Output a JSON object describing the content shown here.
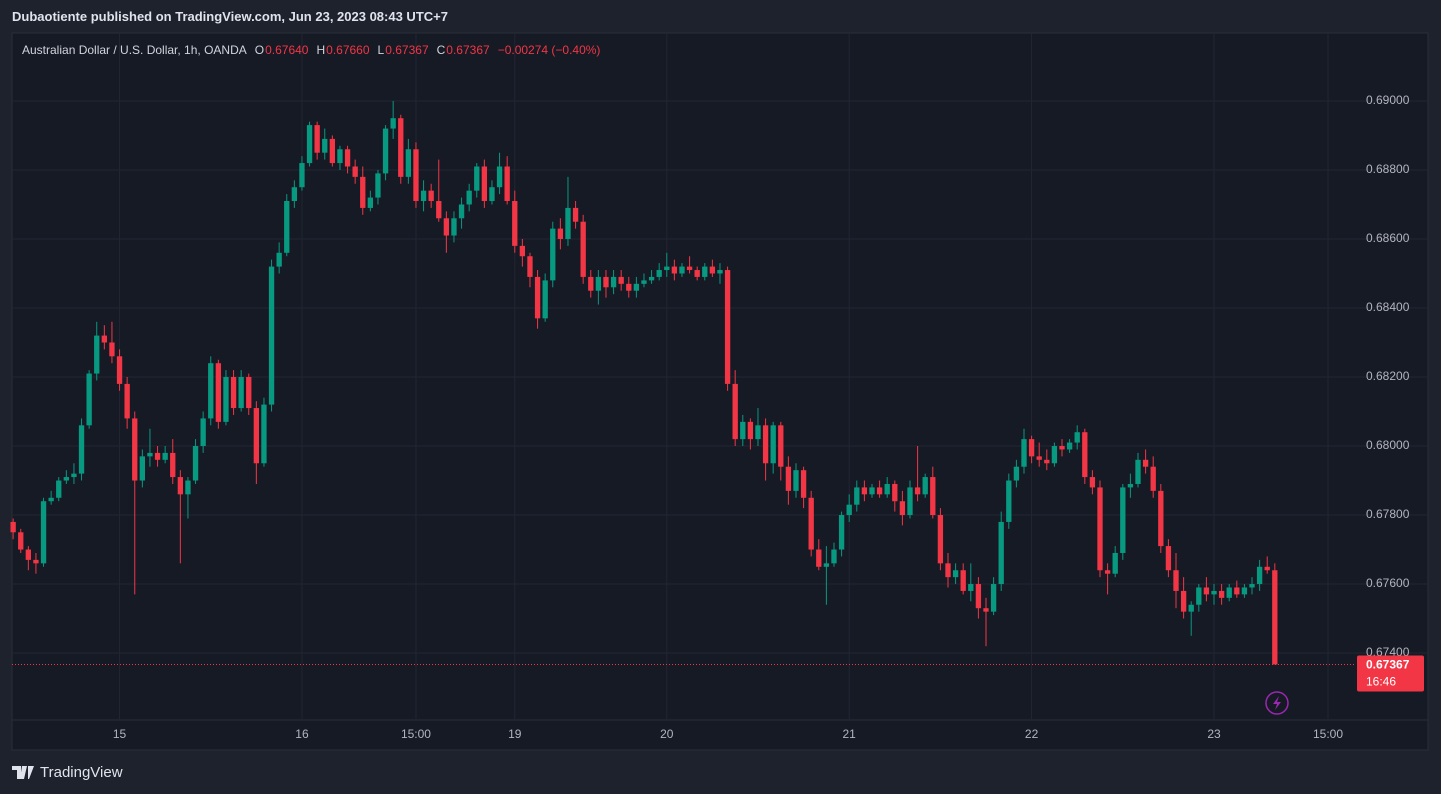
{
  "header": {
    "publisher": "Dubaotiente published on TradingView.com, Jun 23, 2023 08:43 UTC+7"
  },
  "chart_data": {
    "type": "candlestick",
    "symbol": "Australian Dollar / U.S. Dollar, 1h, OANDA",
    "legend_values": [
      {
        "key": "O",
        "value": "0.67640"
      },
      {
        "key": "H",
        "value": "0.67660"
      },
      {
        "key": "L",
        "value": "0.67367"
      },
      {
        "key": "C",
        "value": "0.67367"
      }
    ],
    "change": "−0.00274 (−0.40%)",
    "up_color": "#089981",
    "down_color": "#f23645",
    "grid": true,
    "xlim": [
      -0.15,
      176.55
    ],
    "xticks": [
      {
        "value": 14,
        "label": "15"
      },
      {
        "value": 38,
        "label": "16"
      },
      {
        "value": 53,
        "label": "15:00"
      },
      {
        "value": 66,
        "label": "19"
      },
      {
        "value": 86,
        "label": "20"
      },
      {
        "value": 110,
        "label": "21"
      },
      {
        "value": 134,
        "label": "22"
      },
      {
        "value": 158,
        "label": "23"
      },
      {
        "value": 173,
        "label": "15:00"
      }
    ],
    "ylim": [
      0.67206,
      0.69194
    ],
    "yticks": [
      {
        "value": 0.674,
        "label": "0.67400"
      },
      {
        "value": 0.676,
        "label": "0.67600"
      },
      {
        "value": 0.678,
        "label": "0.67800"
      },
      {
        "value": 0.68,
        "label": "0.68000"
      },
      {
        "value": 0.682,
        "label": "0.68200"
      },
      {
        "value": 0.684,
        "label": "0.68400"
      },
      {
        "value": 0.686,
        "label": "0.68600"
      },
      {
        "value": 0.688,
        "label": "0.68800"
      },
      {
        "value": 0.69,
        "label": "0.69000"
      }
    ],
    "last_price": {
      "value": 0.67367,
      "label": "0.67367"
    },
    "countdown": "16:46",
    "candles": [
      [
        0.6778,
        0.6779,
        0.6773,
        0.6775
      ],
      [
        0.6775,
        0.6776,
        0.6769,
        0.677
      ],
      [
        0.677,
        0.6771,
        0.6764,
        0.6767
      ],
      [
        0.6767,
        0.6769,
        0.6763,
        0.6766
      ],
      [
        0.6766,
        0.6785,
        0.6765,
        0.6784
      ],
      [
        0.6784,
        0.6787,
        0.6783,
        0.6785
      ],
      [
        0.6785,
        0.6791,
        0.6784,
        0.679
      ],
      [
        0.679,
        0.6793,
        0.6789,
        0.6791
      ],
      [
        0.6791,
        0.6795,
        0.6789,
        0.6792
      ],
      [
        0.6792,
        0.6808,
        0.679,
        0.6806
      ],
      [
        0.6806,
        0.6822,
        0.6805,
        0.6821
      ],
      [
        0.6821,
        0.6836,
        0.6819,
        0.6832
      ],
      [
        0.6832,
        0.6835,
        0.6828,
        0.683
      ],
      [
        0.683,
        0.6836,
        0.6824,
        0.6826
      ],
      [
        0.6826,
        0.6828,
        0.6816,
        0.6818
      ],
      [
        0.6818,
        0.682,
        0.6805,
        0.6808
      ],
      [
        0.6808,
        0.681,
        0.6757,
        0.679
      ],
      [
        0.679,
        0.6799,
        0.6788,
        0.6797
      ],
      [
        0.6797,
        0.6805,
        0.6794,
        0.6798
      ],
      [
        0.6798,
        0.68,
        0.6794,
        0.6796
      ],
      [
        0.6796,
        0.68,
        0.6795,
        0.6798
      ],
      [
        0.6798,
        0.6802,
        0.6789,
        0.6791
      ],
      [
        0.6791,
        0.6793,
        0.6766,
        0.6786
      ],
      [
        0.6786,
        0.6791,
        0.6779,
        0.679
      ],
      [
        0.679,
        0.6802,
        0.6789,
        0.68
      ],
      [
        0.68,
        0.681,
        0.6798,
        0.6808
      ],
      [
        0.6808,
        0.6826,
        0.6806,
        0.6824
      ],
      [
        0.6824,
        0.6825,
        0.6805,
        0.6807
      ],
      [
        0.6807,
        0.6822,
        0.6806,
        0.682
      ],
      [
        0.682,
        0.6822,
        0.6809,
        0.6811
      ],
      [
        0.6811,
        0.6822,
        0.681,
        0.682
      ],
      [
        0.682,
        0.6821,
        0.6809,
        0.6811
      ],
      [
        0.6811,
        0.6813,
        0.6789,
        0.6795
      ],
      [
        0.6795,
        0.6814,
        0.6794,
        0.6812
      ],
      [
        0.6812,
        0.6854,
        0.681,
        0.6852
      ],
      [
        0.6852,
        0.6859,
        0.685,
        0.6856
      ],
      [
        0.6856,
        0.6873,
        0.6855,
        0.6871
      ],
      [
        0.6871,
        0.6877,
        0.6869,
        0.6875
      ],
      [
        0.6875,
        0.6884,
        0.6874,
        0.6882
      ],
      [
        0.6882,
        0.6894,
        0.6881,
        0.6893
      ],
      [
        0.6893,
        0.6894,
        0.6883,
        0.6885
      ],
      [
        0.6885,
        0.6892,
        0.6883,
        0.6889
      ],
      [
        0.6889,
        0.689,
        0.6881,
        0.6882
      ],
      [
        0.6882,
        0.6887,
        0.688,
        0.6886
      ],
      [
        0.6886,
        0.6887,
        0.6879,
        0.6881
      ],
      [
        0.6881,
        0.6883,
        0.6876,
        0.6878
      ],
      [
        0.6878,
        0.6881,
        0.6867,
        0.6869
      ],
      [
        0.6869,
        0.6874,
        0.6868,
        0.6872
      ],
      [
        0.6872,
        0.688,
        0.687,
        0.6879
      ],
      [
        0.6879,
        0.6893,
        0.6877,
        0.6892
      ],
      [
        0.6892,
        0.69,
        0.6889,
        0.6895
      ],
      [
        0.6895,
        0.6896,
        0.6876,
        0.6878
      ],
      [
        0.6878,
        0.6889,
        0.6876,
        0.6886
      ],
      [
        0.6886,
        0.6888,
        0.6869,
        0.6871
      ],
      [
        0.6871,
        0.6877,
        0.6868,
        0.6874
      ],
      [
        0.6874,
        0.6876,
        0.6869,
        0.6871
      ],
      [
        0.6871,
        0.6883,
        0.6865,
        0.6866
      ],
      [
        0.6866,
        0.6868,
        0.6856,
        0.6861
      ],
      [
        0.6861,
        0.6868,
        0.6859,
        0.6866
      ],
      [
        0.6866,
        0.6872,
        0.6863,
        0.687
      ],
      [
        0.687,
        0.6876,
        0.6868,
        0.6874
      ],
      [
        0.6874,
        0.6882,
        0.6872,
        0.6881
      ],
      [
        0.6881,
        0.6883,
        0.6869,
        0.6871
      ],
      [
        0.6871,
        0.6877,
        0.687,
        0.6875
      ],
      [
        0.6875,
        0.6885,
        0.6873,
        0.6881
      ],
      [
        0.6881,
        0.6884,
        0.687,
        0.6871
      ],
      [
        0.6871,
        0.6874,
        0.6856,
        0.6858
      ],
      [
        0.6858,
        0.686,
        0.6852,
        0.6855
      ],
      [
        0.6855,
        0.6856,
        0.6846,
        0.6849
      ],
      [
        0.6849,
        0.6851,
        0.6834,
        0.6837
      ],
      [
        0.6837,
        0.685,
        0.6836,
        0.6848
      ],
      [
        0.6848,
        0.6865,
        0.6846,
        0.6863
      ],
      [
        0.6863,
        0.6866,
        0.6857,
        0.686
      ],
      [
        0.686,
        0.6878,
        0.6858,
        0.6869
      ],
      [
        0.6869,
        0.6871,
        0.6863,
        0.6865
      ],
      [
        0.6865,
        0.6867,
        0.6847,
        0.6849
      ],
      [
        0.6849,
        0.6851,
        0.6843,
        0.6845
      ],
      [
        0.6845,
        0.6851,
        0.6841,
        0.6849
      ],
      [
        0.6849,
        0.6851,
        0.6843,
        0.6846
      ],
      [
        0.6846,
        0.6851,
        0.6844,
        0.6849
      ],
      [
        0.6849,
        0.6851,
        0.6845,
        0.6847
      ],
      [
        0.6847,
        0.6849,
        0.6843,
        0.6845
      ],
      [
        0.6845,
        0.6849,
        0.6843,
        0.6847
      ],
      [
        0.6847,
        0.685,
        0.6846,
        0.6848
      ],
      [
        0.6848,
        0.6851,
        0.6847,
        0.6849
      ],
      [
        0.6849,
        0.6853,
        0.6848,
        0.6851
      ],
      [
        0.6851,
        0.6856,
        0.6849,
        0.6852
      ],
      [
        0.6852,
        0.6854,
        0.6848,
        0.685
      ],
      [
        0.685,
        0.6853,
        0.6849,
        0.6852
      ],
      [
        0.6852,
        0.6855,
        0.685,
        0.6851
      ],
      [
        0.6851,
        0.6852,
        0.6848,
        0.6849
      ],
      [
        0.6849,
        0.6853,
        0.6848,
        0.6852
      ],
      [
        0.6852,
        0.6854,
        0.6849,
        0.685
      ],
      [
        0.685,
        0.6853,
        0.6847,
        0.6851
      ],
      [
        0.6851,
        0.6852,
        0.6816,
        0.6818
      ],
      [
        0.6818,
        0.6822,
        0.68,
        0.6802
      ],
      [
        0.6802,
        0.6809,
        0.68,
        0.6807
      ],
      [
        0.6807,
        0.6808,
        0.6799,
        0.6802
      ],
      [
        0.6802,
        0.6811,
        0.68,
        0.6806
      ],
      [
        0.6806,
        0.6808,
        0.679,
        0.6795
      ],
      [
        0.6795,
        0.6807,
        0.6792,
        0.6806
      ],
      [
        0.6806,
        0.6807,
        0.679,
        0.6794
      ],
      [
        0.6794,
        0.6797,
        0.6783,
        0.6787
      ],
      [
        0.6787,
        0.6795,
        0.6785,
        0.6793
      ],
      [
        0.6793,
        0.6794,
        0.6782,
        0.6785
      ],
      [
        0.6785,
        0.6787,
        0.6768,
        0.677
      ],
      [
        0.677,
        0.6773,
        0.6764,
        0.6765
      ],
      [
        0.6765,
        0.6771,
        0.6754,
        0.6766
      ],
      [
        0.6766,
        0.6772,
        0.6765,
        0.677
      ],
      [
        0.677,
        0.6781,
        0.6768,
        0.678
      ],
      [
        0.678,
        0.6786,
        0.6778,
        0.6783
      ],
      [
        0.6783,
        0.679,
        0.6781,
        0.6788
      ],
      [
        0.6788,
        0.679,
        0.6784,
        0.6786
      ],
      [
        0.6786,
        0.6789,
        0.6785,
        0.6788
      ],
      [
        0.6788,
        0.679,
        0.6785,
        0.6786
      ],
      [
        0.6786,
        0.6791,
        0.6785,
        0.6789
      ],
      [
        0.6789,
        0.679,
        0.6781,
        0.6784
      ],
      [
        0.6784,
        0.6787,
        0.6777,
        0.678
      ],
      [
        0.678,
        0.679,
        0.6779,
        0.6788
      ],
      [
        0.6788,
        0.68,
        0.6784,
        0.6786
      ],
      [
        0.6786,
        0.6792,
        0.6785,
        0.6791
      ],
      [
        0.6791,
        0.6794,
        0.6779,
        0.678
      ],
      [
        0.678,
        0.6782,
        0.6764,
        0.6766
      ],
      [
        0.6766,
        0.6769,
        0.6759,
        0.6762
      ],
      [
        0.6762,
        0.6766,
        0.676,
        0.6764
      ],
      [
        0.6764,
        0.6766,
        0.6757,
        0.6758
      ],
      [
        0.6758,
        0.6766,
        0.6755,
        0.676
      ],
      [
        0.676,
        0.6762,
        0.675,
        0.6753
      ],
      [
        0.6753,
        0.6756,
        0.6742,
        0.6752
      ],
      [
        0.6752,
        0.6762,
        0.6751,
        0.676
      ],
      [
        0.676,
        0.6781,
        0.6758,
        0.6778
      ],
      [
        0.6778,
        0.6792,
        0.6776,
        0.679
      ],
      [
        0.679,
        0.6796,
        0.6788,
        0.6794
      ],
      [
        0.6794,
        0.6805,
        0.6792,
        0.6802
      ],
      [
        0.6802,
        0.6803,
        0.6795,
        0.6797
      ],
      [
        0.6797,
        0.6801,
        0.6794,
        0.6796
      ],
      [
        0.6796,
        0.6799,
        0.6793,
        0.6795
      ],
      [
        0.6795,
        0.6801,
        0.6794,
        0.68
      ],
      [
        0.68,
        0.6802,
        0.6797,
        0.6799
      ],
      [
        0.6799,
        0.6802,
        0.6798,
        0.6801
      ],
      [
        0.6801,
        0.6806,
        0.6799,
        0.6804
      ],
      [
        0.6804,
        0.6805,
        0.6789,
        0.6791
      ],
      [
        0.6791,
        0.6793,
        0.6786,
        0.6788
      ],
      [
        0.6788,
        0.679,
        0.6762,
        0.6764
      ],
      [
        0.6764,
        0.6766,
        0.6757,
        0.6763
      ],
      [
        0.6763,
        0.6771,
        0.6762,
        0.6769
      ],
      [
        0.6769,
        0.6789,
        0.6767,
        0.6788
      ],
      [
        0.6788,
        0.6792,
        0.6785,
        0.6789
      ],
      [
        0.6789,
        0.6798,
        0.6788,
        0.6796
      ],
      [
        0.6796,
        0.6799,
        0.6792,
        0.6794
      ],
      [
        0.6794,
        0.6797,
        0.6785,
        0.6787
      ],
      [
        0.6787,
        0.6789,
        0.6769,
        0.6771
      ],
      [
        0.6771,
        0.6773,
        0.6762,
        0.6764
      ],
      [
        0.6764,
        0.6769,
        0.6753,
        0.6758
      ],
      [
        0.6758,
        0.6762,
        0.675,
        0.6752
      ],
      [
        0.6752,
        0.6755,
        0.6745,
        0.6754
      ],
      [
        0.6754,
        0.676,
        0.6752,
        0.6759
      ],
      [
        0.6759,
        0.6762,
        0.6755,
        0.6757
      ],
      [
        0.6757,
        0.676,
        0.6754,
        0.6758
      ],
      [
        0.6758,
        0.676,
        0.6754,
        0.6756
      ],
      [
        0.6756,
        0.676,
        0.6755,
        0.6759
      ],
      [
        0.6759,
        0.6761,
        0.6756,
        0.6757
      ],
      [
        0.6757,
        0.676,
        0.6756,
        0.6759
      ],
      [
        0.6759,
        0.6762,
        0.6757,
        0.676
      ],
      [
        0.676,
        0.6767,
        0.6758,
        0.6765
      ],
      [
        0.6765,
        0.6768,
        0.6763,
        0.6764
      ],
      [
        0.6764,
        0.6766,
        0.67367,
        0.67367
      ]
    ]
  },
  "footer": {
    "brand": "TradingView"
  }
}
